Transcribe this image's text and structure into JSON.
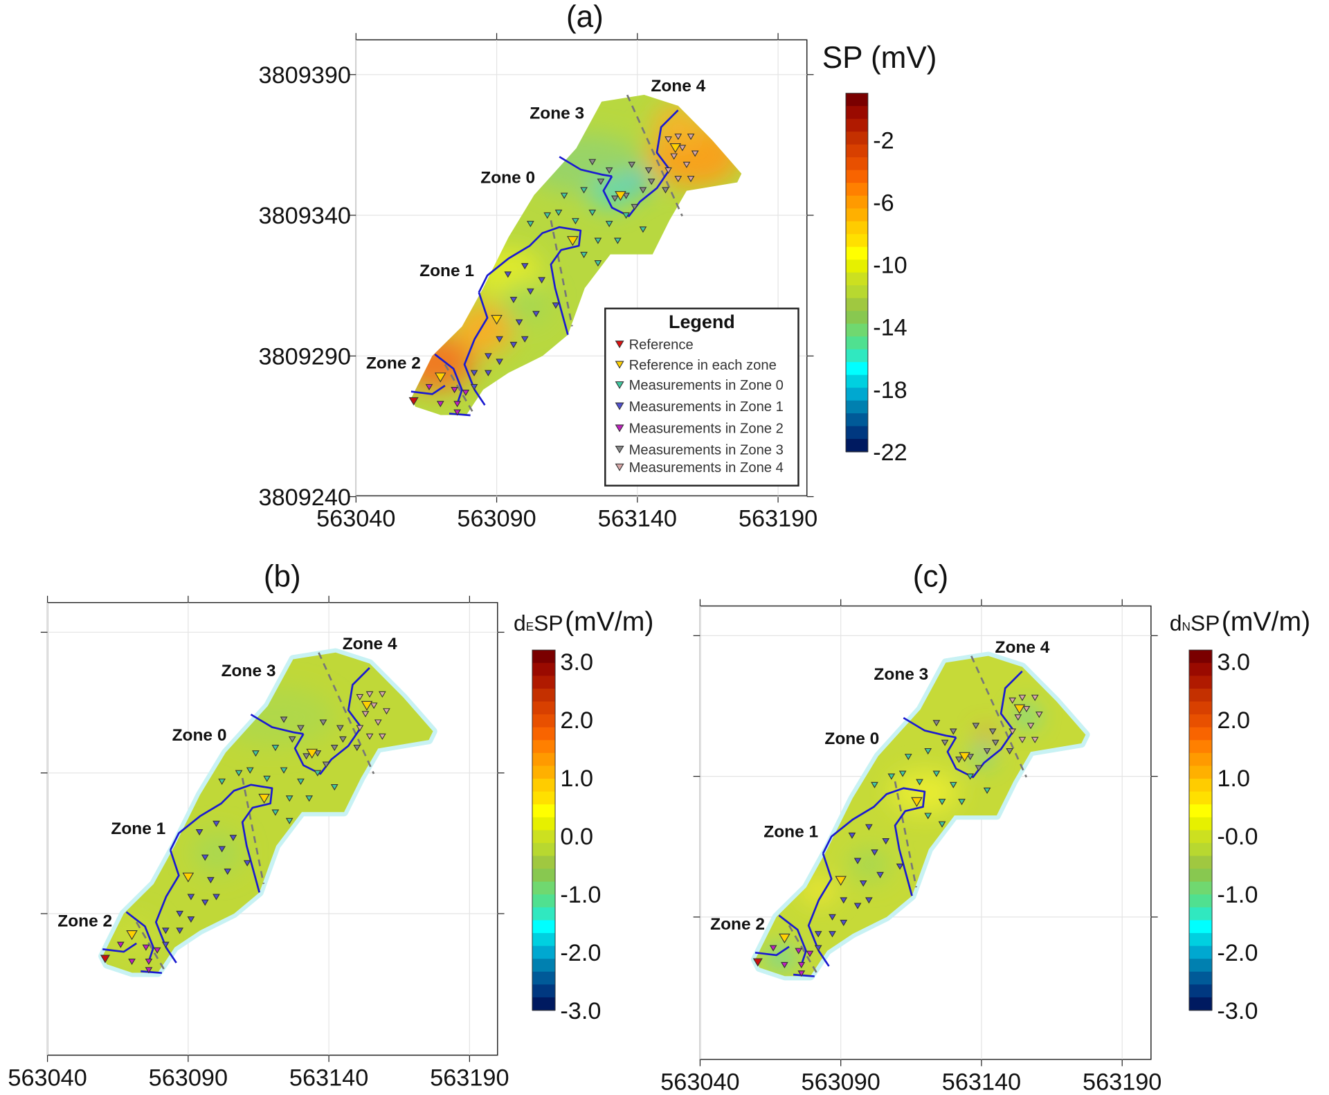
{
  "chart_data": [
    {
      "type": "heatmap",
      "title": "(a)",
      "colorbar_label": "SP (mV)",
      "colorbar_ticks": [
        "-2",
        "-6",
        "-10",
        "-14",
        "-18",
        "-22"
      ],
      "colorbar_tick_values": [
        -2,
        -6,
        -10,
        -14,
        -18,
        -22
      ],
      "colorbar_range": [
        -22,
        1
      ],
      "xlim": [
        563040,
        563200
      ],
      "ylim": [
        3809240,
        3809402
      ],
      "xticks": [
        "563040",
        "563090",
        "563140",
        "563190"
      ],
      "xtick_values": [
        563040,
        563090,
        563140,
        563190
      ],
      "yticks": [
        "3809390",
        "3809340",
        "3809290",
        "3809240"
      ],
      "ytick_values": [
        3809390,
        3809340,
        3809290,
        3809240
      ],
      "legend": {
        "title": "Legend",
        "placement": "bottom-right",
        "entries": [
          {
            "label": "Reference",
            "color": "#e01010"
          },
          {
            "label": "Reference in each zone",
            "color": "#ffd000"
          },
          {
            "label": "Measurements in Zone 0",
            "color": "#40c8a0"
          },
          {
            "label": "Measurements in Zone 1",
            "color": "#5050d0"
          },
          {
            "label": "Measurements in Zone 2",
            "color": "#c020c0"
          },
          {
            "label": "Measurements in Zone 3",
            "color": "#8a8a8a"
          },
          {
            "label": "Measurements in Zone 4",
            "color": "#d8a8a8"
          }
        ]
      }
    },
    {
      "type": "heatmap",
      "title": "(b)",
      "colorbar_label_main": "d",
      "colorbar_label_sub": "E",
      "colorbar_label_rest": "SP",
      "colorbar_label_unit": "(mV/m)",
      "colorbar_ticks": [
        "3.0",
        "2.0",
        "1.0",
        "0.0",
        "-1.0",
        "-2.0",
        "-3.0"
      ],
      "colorbar_tick_values": [
        3,
        2,
        1,
        0,
        -1,
        -2,
        -3
      ],
      "colorbar_range": [
        -3,
        3.2
      ],
      "xlim": [
        563040,
        563200
      ],
      "ylim": [
        3809240,
        3809400
      ],
      "xticks": [
        "563040",
        "563090",
        "563140",
        "563190"
      ],
      "xtick_values": [
        563040,
        563090,
        563140,
        563190
      ],
      "ytick_values": [
        3809390,
        3809340,
        3809290
      ]
    },
    {
      "type": "heatmap",
      "title": "(c)",
      "colorbar_label_main": "d",
      "colorbar_label_sub": "N",
      "colorbar_label_rest": "SP",
      "colorbar_label_unit": "(mV/m)",
      "colorbar_ticks": [
        "3.0",
        "2.0",
        "1.0",
        "-0.0",
        "-1.0",
        "-2.0",
        "-3.0"
      ],
      "colorbar_tick_values": [
        3,
        2,
        1,
        0,
        -1,
        -2,
        -3
      ],
      "colorbar_range": [
        -3,
        3.2
      ],
      "xlim": [
        563040,
        563200
      ],
      "ylim": [
        3809240,
        3809400
      ],
      "xticks": [
        "563040",
        "563090",
        "563140",
        "563190"
      ],
      "xtick_values": [
        563040,
        563090,
        563140,
        563190
      ],
      "ytick_values": [
        3809390,
        3809340,
        3809290
      ]
    }
  ],
  "zones": [
    "Zone 0",
    "Zone 1",
    "Zone 2",
    "Zone 3",
    "Zone 4"
  ],
  "colormap": [
    "#7a0000",
    "#9a0a00",
    "#b01a00",
    "#c43000",
    "#d84000",
    "#e85000",
    "#f86400",
    "#ff8000",
    "#ff9a00",
    "#ffb000",
    "#ffcc00",
    "#ffe000",
    "#ffff00",
    "#e6f000",
    "#cce020",
    "#b8d830",
    "#a0c840",
    "#88c850",
    "#70d870",
    "#50e090",
    "#30e8c0",
    "#00ffff",
    "#00d0e0",
    "#00a8d0",
    "#0080b0",
    "#005a98",
    "#003880",
    "#001a60"
  ],
  "reference_point": [
    563060.5,
    3809274
  ],
  "zone_reference_points": [
    [
      563070,
      3809282.5
    ],
    [
      563090,
      3809303
    ],
    [
      563117,
      3809331
    ],
    [
      563134,
      3809347
    ],
    [
      563153.5,
      3809364
    ]
  ],
  "measurements": [
    [
      563151,
      3809367,
      4
    ],
    [
      563154.5,
      3809368,
      4
    ],
    [
      563159,
      3809368,
      4
    ],
    [
      563156,
      3809364,
      4
    ],
    [
      563160.5,
      3809362,
      4
    ],
    [
      563153,
      3809361,
      4
    ],
    [
      563157.5,
      3809358,
      4
    ],
    [
      563154.5,
      3809353,
      4
    ],
    [
      563159,
      3809353,
      4
    ],
    [
      563151,
      3809356,
      4
    ],
    [
      563124,
      3809359,
      3
    ],
    [
      563130,
      3809356,
      3
    ],
    [
      563138,
      3809358,
      3
    ],
    [
      563144,
      3809356,
      3
    ],
    [
      563127,
      3809352,
      3
    ],
    [
      563136,
      3809347,
      3
    ],
    [
      563142,
      3809349,
      3
    ],
    [
      563150,
      3809349,
      3
    ],
    [
      563139,
      3809343,
      3
    ],
    [
      563145,
      3809352,
      3
    ],
    [
      563132,
      3809346,
      3
    ],
    [
      563102,
      3809337,
      0
    ],
    [
      563108,
      3809340,
      0
    ],
    [
      563114,
      3809347,
      0
    ],
    [
      563121,
      3809349,
      0
    ],
    [
      563124,
      3809341,
      0
    ],
    [
      563130,
      3809337,
      0
    ],
    [
      563136,
      3809340,
      0
    ],
    [
      563142,
      3809335,
      0
    ],
    [
      563126,
      3809331,
      0
    ],
    [
      563133,
      3809331,
      0
    ],
    [
      563121,
      3809326,
      0
    ],
    [
      563126,
      3809323,
      0
    ],
    [
      563112,
      3809341,
      0
    ],
    [
      563118,
      3809338,
      0
    ],
    [
      563094,
      3809319,
      1
    ],
    [
      563100,
      3809322,
      1
    ],
    [
      563096,
      3809310,
      1
    ],
    [
      563102,
      3809313,
      1
    ],
    [
      563106,
      3809317,
      1
    ],
    [
      563098,
      3809302,
      1
    ],
    [
      563104,
      3809305,
      1
    ],
    [
      563111,
      3809308,
      1
    ],
    [
      563091,
      3809296,
      1
    ],
    [
      563096,
      3809294,
      1
    ],
    [
      563100,
      3809296,
      1
    ],
    [
      563087,
      3809290,
      1
    ],
    [
      563091,
      3809288,
      1
    ],
    [
      563082,
      3809284,
      1
    ],
    [
      563087,
      3809284,
      1
    ],
    [
      563082,
      3809279,
      1
    ],
    [
      563066,
      3809279,
      2
    ],
    [
      563070,
      3809273,
      2
    ],
    [
      563075,
      3809278,
      2
    ],
    [
      563076,
      3809273,
      2
    ],
    [
      563079,
      3809277,
      2
    ],
    [
      563076,
      3809270,
      2
    ]
  ],
  "survey_outline": [
    [
      563059.6,
      3809274.9
    ],
    [
      563067.1,
      3809290
    ],
    [
      563077.7,
      3809300.5
    ],
    [
      563085.2,
      3809314.1
    ],
    [
      563094.2,
      3809332.2
    ],
    [
      563103.3,
      3809347.2
    ],
    [
      563118.3,
      3809363.8
    ],
    [
      563127.3,
      3809380.4
    ],
    [
      563142.4,
      3809382.8
    ],
    [
      563154.5,
      3809378.9
    ],
    [
      563166.5,
      3809366.8
    ],
    [
      563177,
      3809354.8
    ],
    [
      563175.5,
      3809351.7
    ],
    [
      563157.5,
      3809348.7
    ],
    [
      563151.4,
      3809338.2
    ],
    [
      563145.4,
      3809326.1
    ],
    [
      563130.4,
      3809326.1
    ],
    [
      563121.3,
      3809314.1
    ],
    [
      563115.3,
      3809297.5
    ],
    [
      563106.3,
      3809290
    ],
    [
      563094.2,
      3809284
    ],
    [
      563085.2,
      3809278
    ],
    [
      563079.2,
      3809269
    ],
    [
      563070.1,
      3809269
    ],
    [
      563061.1,
      3809272
    ]
  ]
}
